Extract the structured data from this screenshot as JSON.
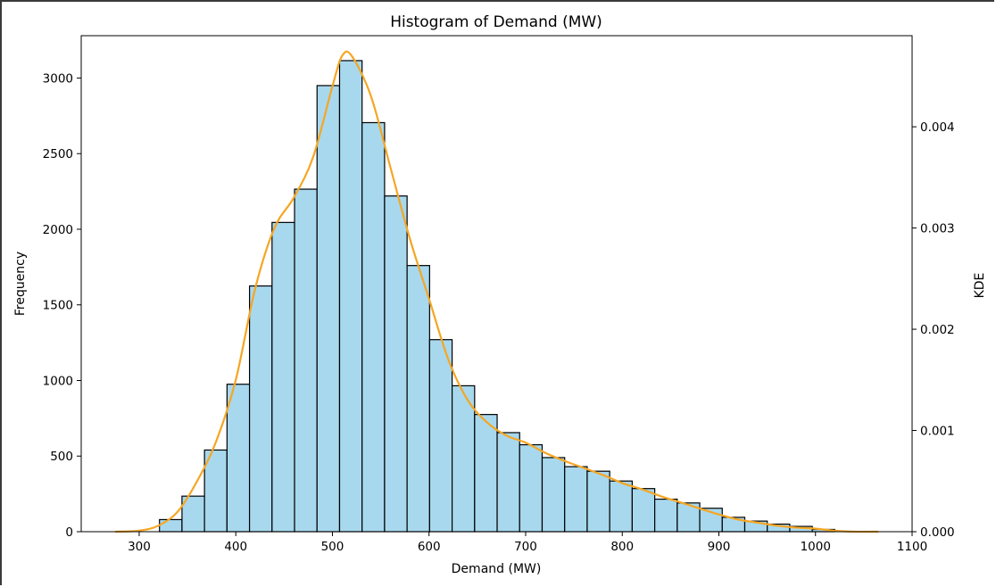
{
  "chart_data": {
    "type": "bar",
    "title": "Histogram of Demand (MW)",
    "xlabel": "Demand (MW)",
    "ylabel": "Frequency",
    "y2label": "KDE",
    "xlim": [
      240,
      1100
    ],
    "ylim": [
      0,
      3280
    ],
    "y2lim": [
      0,
      0.0049
    ],
    "xticks": [
      300,
      400,
      500,
      600,
      700,
      800,
      900,
      1000,
      1100
    ],
    "yticks": [
      0,
      500,
      1000,
      1500,
      2000,
      2500,
      3000
    ],
    "y2ticks": [
      0.0,
      0.001,
      0.002,
      0.003,
      0.004
    ],
    "y2tick_labels": [
      "0.000",
      "0.001",
      "0.002",
      "0.003",
      "0.004"
    ],
    "grid": false,
    "bin_width": 23.3,
    "bin_start": 321,
    "counts": [
      80,
      235,
      540,
      975,
      1625,
      2045,
      2265,
      2950,
      3115,
      2705,
      2220,
      1760,
      1270,
      965,
      775,
      655,
      575,
      490,
      430,
      400,
      335,
      285,
      215,
      190,
      155,
      95,
      70,
      50,
      35,
      15
    ],
    "bar_color": "#a8d8ee",
    "bar_edge": "#000000",
    "kde_color": "#f5a623",
    "kde_x": [
      275,
      300,
      320,
      340,
      360,
      380,
      400,
      420,
      440,
      460,
      480,
      500,
      510,
      520,
      540,
      560,
      580,
      600,
      620,
      640,
      660,
      680,
      700,
      720,
      740,
      760,
      780,
      800,
      820,
      840,
      860,
      880,
      900,
      920,
      940,
      960,
      980,
      1000,
      1020,
      1040,
      1065
    ],
    "kde_y": [
      0.0,
      1e-05,
      6e-05,
      0.0002,
      0.0005,
      0.0009,
      0.0015,
      0.0024,
      0.003,
      0.0033,
      0.0037,
      0.0044,
      0.0047,
      0.0047,
      0.0043,
      0.0036,
      0.0029,
      0.0023,
      0.0017,
      0.0013,
      0.00108,
      0.00095,
      0.00088,
      0.00078,
      0.0007,
      0.00063,
      0.00056,
      0.00048,
      0.00042,
      0.00035,
      0.00029,
      0.00023,
      0.00017,
      0.00012,
      9e-05,
      6e-05,
      4e-05,
      3e-05,
      1e-05,
      0.0,
      0.0
    ]
  }
}
